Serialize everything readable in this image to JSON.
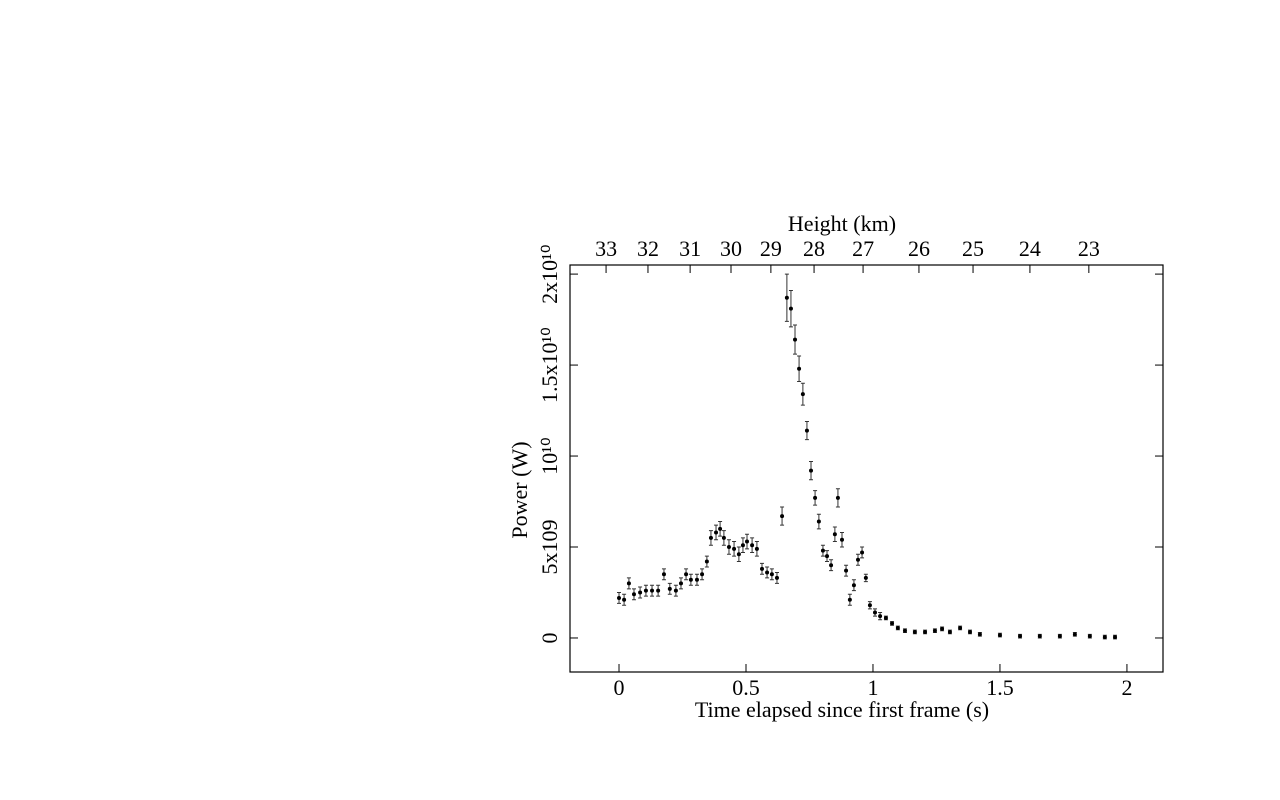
{
  "chart_data": {
    "type": "line",
    "xlabel": "Time elapsed since first frame (s)",
    "ylabel": "Power (W)",
    "x2label": "Height (km)",
    "color": "#000000",
    "x": [
      0,
      0.02,
      0.039,
      0.059,
      0.083,
      0.106,
      0.13,
      0.154,
      0.177,
      0.2,
      0.224,
      0.244,
      0.264,
      0.283,
      0.307,
      0.327,
      0.346,
      0.362,
      0.382,
      0.398,
      0.413,
      0.433,
      0.453,
      0.472,
      0.488,
      0.504,
      0.524,
      0.543,
      0.563,
      0.583,
      0.602,
      0.622,
      0.642,
      0.661,
      0.677,
      0.693,
      0.709,
      0.724,
      0.74,
      0.756,
      0.772,
      0.787,
      0.803,
      0.819,
      0.835,
      0.85,
      0.862,
      0.878,
      0.894,
      0.909,
      0.925,
      0.941,
      0.957,
      0.972,
      0.988,
      1.008,
      1.028,
      1.051,
      1.075,
      1.098,
      1.126,
      1.165,
      1.205,
      1.244,
      1.272,
      1.303,
      1.343,
      1.382,
      1.421,
      1.5,
      1.579,
      1.657,
      1.736,
      1.795,
      1.854,
      1.913,
      1.953
    ],
    "values": [
      2200000000.0,
      2100000000.0,
      3000000000.0,
      2400000000.0,
      2500000000.0,
      2600000000.0,
      2600000000.0,
      2600000000.0,
      3500000000.0,
      2700000000.0,
      2600000000.0,
      3000000000.0,
      3500000000.0,
      3200000000.0,
      3200000000.0,
      3500000000.0,
      4200000000.0,
      5500000000.0,
      5800000000.0,
      6000000000.0,
      5500000000.0,
      5000000000.0,
      4900000000.0,
      4600000000.0,
      5100000000.0,
      5300000000.0,
      5100000000.0,
      4900000000.0,
      3800000000.0,
      3600000000.0,
      3500000000.0,
      3300000000.0,
      6700000000.0,
      18700000000.0,
      18100000000.0,
      16400000000.0,
      14800000000.0,
      13400000000.0,
      11400000000.0,
      9200000000.0,
      7700000000.0,
      6400000000.0,
      4800000000.0,
      4500000000.0,
      4000000000.0,
      5700000000.0,
      7700000000.0,
      5400000000.0,
      3700000000.0,
      2100000000.0,
      2900000000.0,
      4300000000.0,
      4700000000.0,
      3300000000.0,
      1800000000.0,
      1400000000.0,
      1200000000.0,
      1100000000.0,
      800000000.0,
      550000000.0,
      400000000.0,
      330000000.0,
      330000000.0,
      400000000.0,
      500000000.0,
      330000000.0,
      550000000.0,
      330000000.0,
      200000000.0,
      160000000.0,
      100000000.0,
      100000000.0,
      100000000.0,
      200000000.0,
      100000000.0,
      50000000.0,
      50000000.0
    ],
    "errors": [
      300000000.0,
      300000000.0,
      300000000.0,
      300000000.0,
      300000000.0,
      300000000.0,
      300000000.0,
      300000000.0,
      300000000.0,
      300000000.0,
      300000000.0,
      300000000.0,
      300000000.0,
      300000000.0,
      300000000.0,
      300000000.0,
      300000000.0,
      400000000.0,
      400000000.0,
      400000000.0,
      400000000.0,
      400000000.0,
      400000000.0,
      400000000.0,
      400000000.0,
      400000000.0,
      400000000.0,
      400000000.0,
      300000000.0,
      300000000.0,
      300000000.0,
      300000000.0,
      500000000.0,
      1300000000.0,
      1000000000.0,
      800000000.0,
      700000000.0,
      600000000.0,
      500000000.0,
      500000000.0,
      400000000.0,
      400000000.0,
      300000000.0,
      300000000.0,
      300000000.0,
      400000000.0,
      500000000.0,
      400000000.0,
      300000000.0,
      300000000.0,
      300000000.0,
      300000000.0,
      300000000.0,
      200000000.0,
      200000000.0,
      200000000.0,
      200000000.0,
      100000000.0,
      100000000.0,
      100000000.0,
      100000000.0,
      100000000.0,
      100000000.0,
      100000000.0,
      100000000.0,
      100000000.0,
      100000000.0,
      100000000.0,
      100000000.0,
      100000000.0,
      100000000.0,
      100000000.0,
      100000000.0,
      100000000.0,
      100000000.0,
      100000000.0,
      100000000.0
    ],
    "xlim": [
      -0.193,
      2.142
    ],
    "ylim": [
      -1870000000.0,
      20500000000.0
    ],
    "xticks": [
      0,
      0.5,
      1,
      1.5,
      2
    ],
    "yticks": [
      0,
      {
        "value": 5000000000.0,
        "label": "5x109"
      },
      {
        "value": 10000000000.0,
        "label": "10¹⁰"
      },
      {
        "value": 15000000000.0,
        "label": "1.5x10¹⁰"
      },
      {
        "value": 20000000000.0,
        "label": "2x10¹⁰"
      }
    ],
    "x2ticks": [
      {
        "value": -0.051,
        "label": "33"
      },
      {
        "value": 0.114,
        "label": "32"
      },
      {
        "value": 0.28,
        "label": "31"
      },
      {
        "value": 0.441,
        "label": "30"
      },
      {
        "value": 0.598,
        "label": "29"
      },
      {
        "value": 0.768,
        "label": "28"
      },
      {
        "value": 0.961,
        "label": "27"
      },
      {
        "value": 1.181,
        "label": "26"
      },
      {
        "value": 1.394,
        "label": "25"
      },
      {
        "value": 1.618,
        "label": "24"
      },
      {
        "value": 1.85,
        "label": "23"
      }
    ],
    "grid": false
  }
}
